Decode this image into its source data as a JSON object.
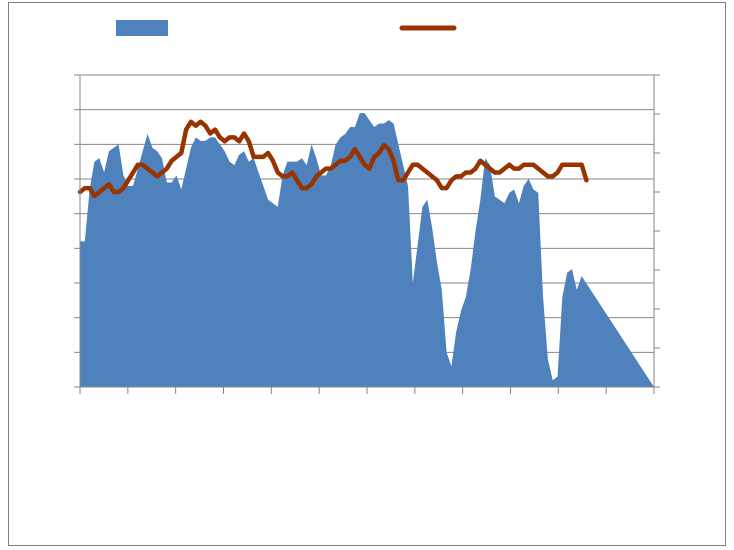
{
  "chart_data": {
    "type": "area",
    "title": "",
    "xlabel": "",
    "ylabel_left": "",
    "ylabel_right": "",
    "grid": "horizontal",
    "legend_placement": "top",
    "x_ticks_count": 13,
    "left_ylim": [
      0,
      9
    ],
    "right_ylim": [
      0,
      8
    ],
    "x_count": 120,
    "series": [
      {
        "kind": "area",
        "axis": "left",
        "color": "#4f81bd",
        "values": [
          4.2,
          4.2,
          5.7,
          6.5,
          6.6,
          6.2,
          6.8,
          6.9,
          7.0,
          6.1,
          5.8,
          5.8,
          6.3,
          6.8,
          7.3,
          6.9,
          6.8,
          6.6,
          5.9,
          5.9,
          6.1,
          5.7,
          6.3,
          6.9,
          7.2,
          7.1,
          7.1,
          7.2,
          7.2,
          7.0,
          6.8,
          6.5,
          6.4,
          6.7,
          6.8,
          6.5,
          6.6,
          6.2,
          5.8,
          5.4,
          5.3,
          5.2,
          6.1,
          6.5,
          6.5,
          6.5,
          6.6,
          6.4,
          7.0,
          6.6,
          6.1,
          6.1,
          6.4,
          7.0,
          7.2,
          7.3,
          7.5,
          7.5,
          7.9,
          7.9,
          7.7,
          7.5,
          7.6,
          7.6,
          7.7,
          7.6,
          7.0,
          6.4,
          5.8,
          3.0,
          4.1,
          5.2,
          5.4,
          4.6,
          3.6,
          2.8,
          1.0,
          0.6,
          1.6,
          2.2,
          2.6,
          3.4,
          4.5,
          5.4,
          6.6,
          6.4,
          5.5,
          5.4,
          5.3,
          5.6,
          5.7,
          5.3,
          5.8,
          6.0,
          5.7,
          5.6,
          2.6,
          0.8,
          0.2,
          0.3,
          2.6,
          3.3,
          3.4,
          2.8,
          3.2
        ]
      },
      {
        "kind": "line",
        "axis": "right",
        "color": "#993300",
        "values": [
          5.0,
          5.1,
          5.1,
          4.9,
          5.0,
          5.1,
          5.2,
          5.0,
          5.0,
          5.1,
          5.3,
          5.5,
          5.7,
          5.7,
          5.6,
          5.5,
          5.4,
          5.5,
          5.6,
          5.8,
          5.9,
          6.0,
          6.6,
          6.8,
          6.7,
          6.8,
          6.7,
          6.5,
          6.6,
          6.4,
          6.3,
          6.4,
          6.4,
          6.3,
          6.5,
          6.3,
          5.9,
          5.9,
          5.9,
          6.0,
          5.8,
          5.5,
          5.4,
          5.4,
          5.5,
          5.3,
          5.1,
          5.1,
          5.2,
          5.4,
          5.5,
          5.6,
          5.6,
          5.7,
          5.8,
          5.8,
          5.9,
          6.1,
          5.9,
          5.7,
          5.6,
          5.9,
          6.0,
          6.2,
          6.1,
          5.8,
          5.3,
          5.3,
          5.5,
          5.7,
          5.7,
          5.6,
          5.5,
          5.4,
          5.3,
          5.1,
          5.1,
          5.3,
          5.4,
          5.4,
          5.5,
          5.5,
          5.6,
          5.8,
          5.7,
          5.6,
          5.5,
          5.5,
          5.6,
          5.7,
          5.6,
          5.6,
          5.7,
          5.7,
          5.7,
          5.6,
          5.5,
          5.4,
          5.4,
          5.5,
          5.7,
          5.7,
          5.7,
          5.7,
          5.7,
          5.3
        ]
      }
    ]
  },
  "legend": {
    "colors": [
      "#4f81bd",
      "#993300"
    ]
  },
  "colors": {
    "grid": "#868686",
    "axis": "#868686",
    "frame": "#7f7f7f"
  }
}
